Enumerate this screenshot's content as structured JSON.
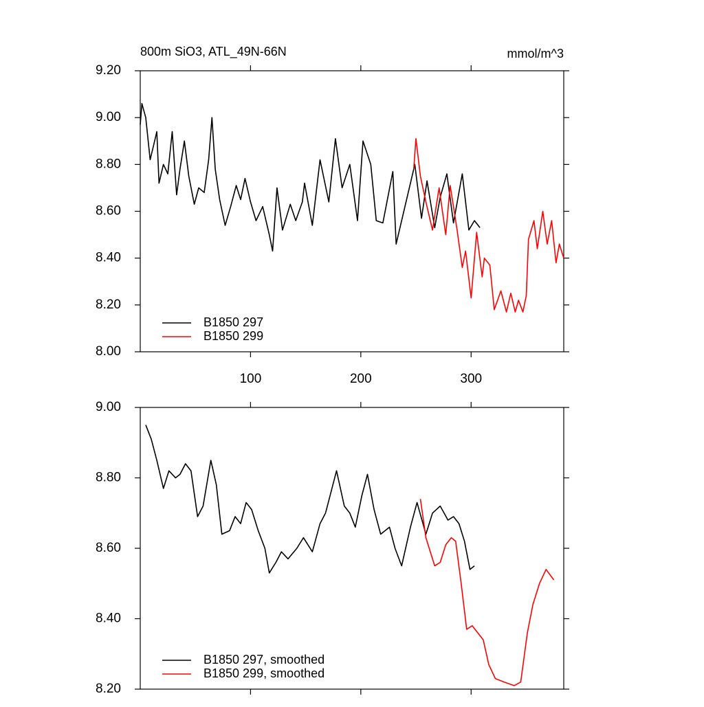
{
  "chart_data": [
    {
      "type": "line",
      "title": "800m SiO3, ATL_49N-66N",
      "units": "mmol/m^3",
      "xlim": [
        0,
        384
      ],
      "xticks": [
        100,
        200,
        300
      ],
      "ylim": [
        8,
        9.2
      ],
      "yticks": [
        {
          "value": 8,
          "label": "8.00"
        },
        {
          "value": 8.2,
          "label": "8.20"
        },
        {
          "value": 8.4,
          "label": "8.40"
        },
        {
          "value": 8.6,
          "label": "8.60"
        },
        {
          "value": 8.8,
          "label": "8.80"
        },
        {
          "value": 9,
          "label": "9.00"
        },
        {
          "value": 9.2,
          "label": "9.20"
        }
      ],
      "legend": "lower left",
      "series": [
        {
          "name": "B1850 297",
          "color": "#000000",
          "x": [
            0,
            1.5,
            5,
            9,
            12,
            15,
            17,
            21,
            25,
            29,
            33,
            36,
            40,
            44,
            49,
            53,
            58,
            62,
            65,
            68,
            72,
            77,
            82,
            87,
            91,
            95,
            100,
            105,
            111,
            117,
            120,
            124,
            129,
            136,
            141,
            147,
            149,
            156,
            163,
            171,
            177,
            183,
            190,
            197,
            202,
            209,
            214,
            220,
            229,
            232,
            238,
            249,
            255,
            260,
            267,
            272,
            278,
            284,
            292,
            298,
            303,
            308
          ],
          "values": [
            8.97,
            9.06,
            9.0,
            8.82,
            8.88,
            8.94,
            8.72,
            8.8,
            8.76,
            8.94,
            8.67,
            8.78,
            8.9,
            8.75,
            8.63,
            8.7,
            8.68,
            8.82,
            9.0,
            8.78,
            8.65,
            8.54,
            8.62,
            8.71,
            8.65,
            8.74,
            8.64,
            8.56,
            8.62,
            8.5,
            8.43,
            8.7,
            8.52,
            8.63,
            8.56,
            8.64,
            8.72,
            8.54,
            8.82,
            8.64,
            8.91,
            8.7,
            8.8,
            8.56,
            8.9,
            8.8,
            8.56,
            8.55,
            8.77,
            8.46,
            8.58,
            8.8,
            8.57,
            8.73,
            8.53,
            8.66,
            8.76,
            8.55,
            8.76,
            8.52,
            8.56,
            8.53
          ]
        },
        {
          "name": "B1850 299",
          "color": "#ff0000",
          "x": [
            248,
            250,
            254,
            259,
            265,
            271,
            277,
            281,
            287,
            292,
            295,
            300,
            305,
            310,
            312,
            317,
            321,
            327,
            332,
            336,
            340,
            343,
            347,
            350,
            352,
            357,
            360,
            365,
            369,
            373,
            377,
            380,
            384
          ],
          "values": [
            8.78,
            8.91,
            8.75,
            8.64,
            8.52,
            8.7,
            8.5,
            8.71,
            8.53,
            8.36,
            8.43,
            8.23,
            8.51,
            8.32,
            8.4,
            8.37,
            8.18,
            8.26,
            8.17,
            8.25,
            8.17,
            8.22,
            8.17,
            8.24,
            8.48,
            8.56,
            8.44,
            8.6,
            8.46,
            8.56,
            8.38,
            8.46,
            8.4
          ]
        }
      ]
    },
    {
      "type": "line",
      "xlim": [
        0,
        384
      ],
      "xticks": [
        100,
        200,
        300
      ],
      "ylim": [
        8.2,
        9
      ],
      "yticks": [
        {
          "value": 8.2,
          "label": "8.20"
        },
        {
          "value": 8.4,
          "label": "8.40"
        },
        {
          "value": 8.6,
          "label": "8.60"
        },
        {
          "value": 8.8,
          "label": "8.80"
        },
        {
          "value": 9,
          "label": "9.00"
        }
      ],
      "legend": "lower left",
      "series": [
        {
          "name": "B1850 297, smoothed",
          "color": "#000000",
          "x": [
            5,
            10,
            15,
            21,
            26,
            32,
            36,
            41,
            46,
            52,
            57,
            64,
            69,
            74,
            81,
            86,
            91,
            96,
            101,
            107,
            113,
            117,
            123,
            128,
            134,
            142,
            148,
            156,
            163,
            168,
            178,
            185,
            190,
            195,
            201,
            206,
            212,
            218,
            226,
            231,
            237,
            245,
            251,
            259,
            265,
            272,
            279,
            284,
            289,
            294,
            299,
            303
          ],
          "values": [
            8.95,
            8.91,
            8.85,
            8.77,
            8.82,
            8.8,
            8.81,
            8.84,
            8.82,
            8.69,
            8.72,
            8.85,
            8.78,
            8.64,
            8.65,
            8.69,
            8.67,
            8.73,
            8.71,
            8.65,
            8.6,
            8.53,
            8.56,
            8.59,
            8.57,
            8.6,
            8.63,
            8.59,
            8.67,
            8.7,
            8.82,
            8.72,
            8.7,
            8.66,
            8.75,
            8.81,
            8.71,
            8.64,
            8.66,
            8.6,
            8.55,
            8.66,
            8.73,
            8.64,
            8.7,
            8.72,
            8.68,
            8.69,
            8.67,
            8.62,
            8.54,
            8.55
          ]
        },
        {
          "name": "B1850 299, smoothed",
          "color": "#ff0000",
          "x": [
            254,
            259,
            263,
            267,
            272,
            277,
            282,
            286,
            291,
            296,
            301,
            306,
            311,
            316,
            322,
            330,
            339,
            345,
            351,
            356,
            362,
            368,
            375
          ],
          "values": [
            8.74,
            8.63,
            8.59,
            8.55,
            8.56,
            8.61,
            8.63,
            8.62,
            8.5,
            8.37,
            8.38,
            8.36,
            8.34,
            8.27,
            8.23,
            8.22,
            8.21,
            8.22,
            8.36,
            8.44,
            8.5,
            8.54,
            8.51
          ]
        }
      ]
    }
  ]
}
